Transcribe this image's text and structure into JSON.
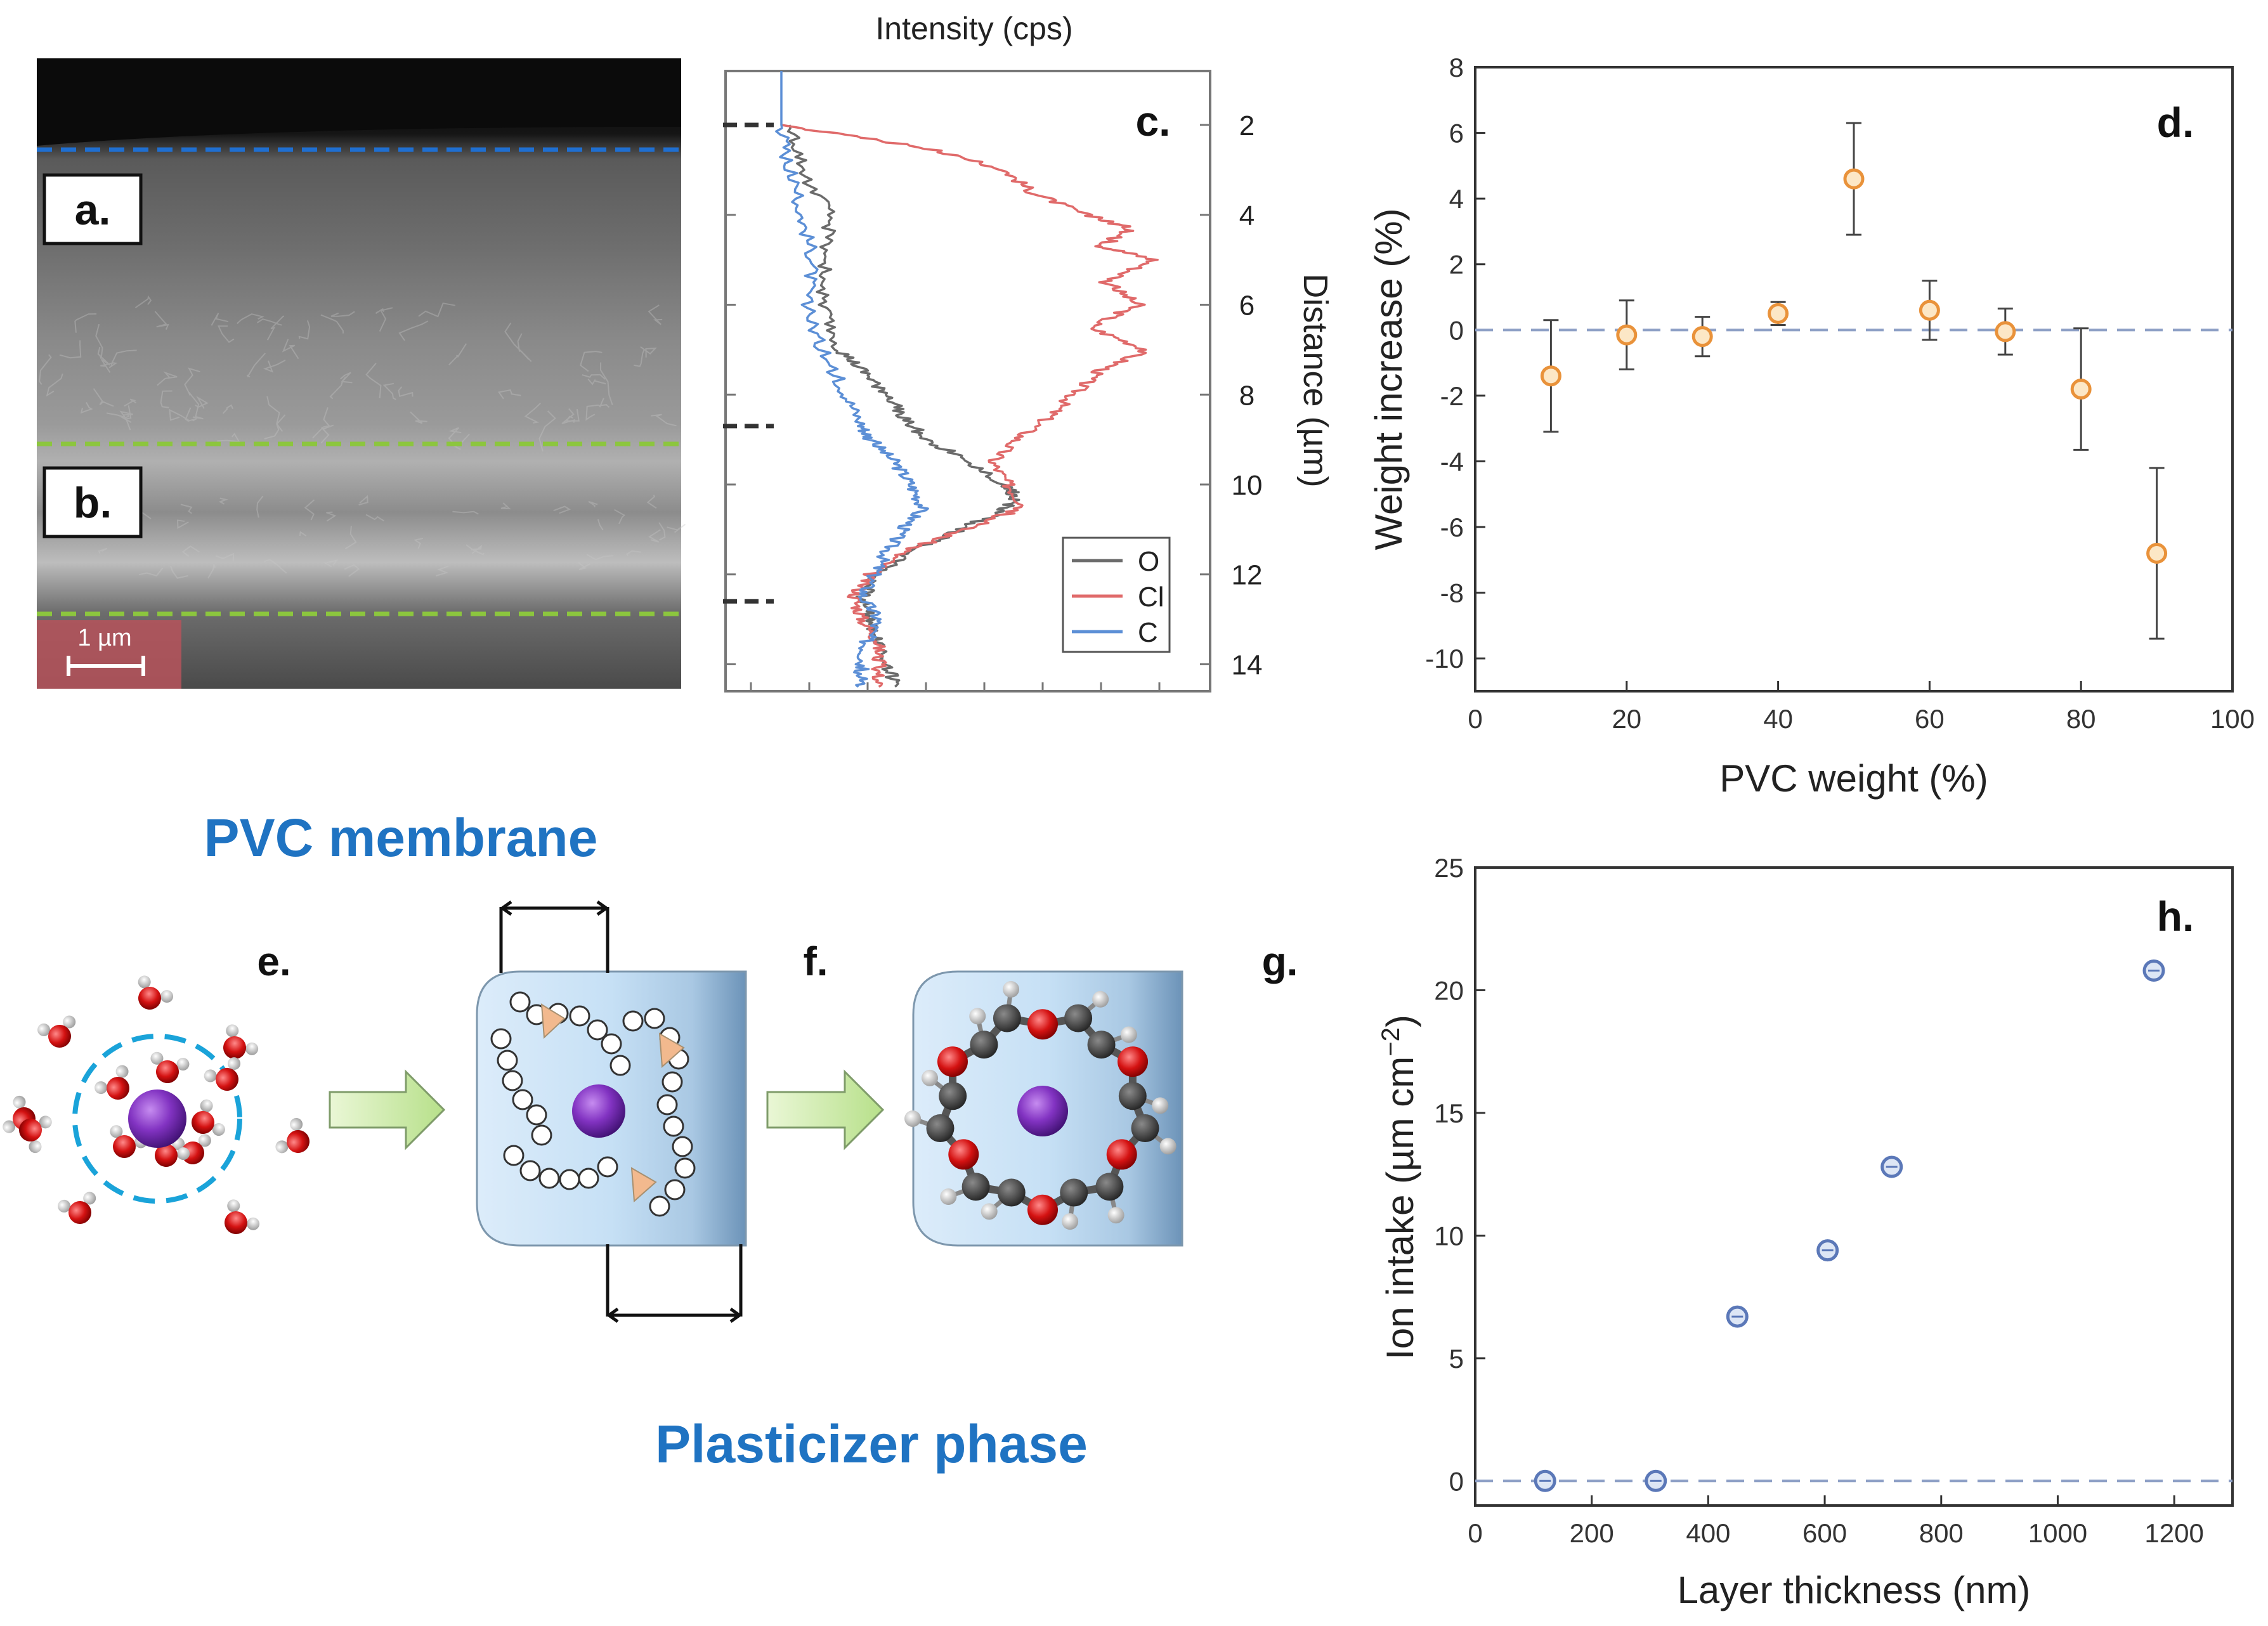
{
  "panel_labels": {
    "a": "a.",
    "b": "b.",
    "c": "c.",
    "d": "d.",
    "e": "e.",
    "f": "f.",
    "g": "g.",
    "h": "h."
  },
  "scale_bar": {
    "label": "1 µm"
  },
  "schematic": {
    "pvc_title": "PVC membrane",
    "plasticizer_title": "Plasticizer phase"
  },
  "colors": {
    "pvc_blue": "#1f73c2",
    "marker_orange": "#e9923a",
    "marker_blue": "#5b78b8",
    "zero_line": "#8ea0c6",
    "eds_O": "#6b6b6b",
    "eds_Cl": "#e06a6a",
    "eds_C": "#5c8fd6"
  },
  "chart_data": [
    {
      "id": "c",
      "type": "line",
      "title": "Intensity (cps)",
      "ylabel": "Distance (µm)",
      "ylim": [
        0.8,
        14.6
      ],
      "yticks": [
        2,
        4,
        6,
        8,
        10,
        12,
        14
      ],
      "interfaces": [
        2,
        8.7,
        12.6
      ],
      "legend_location": "bottom-right",
      "series": [
        {
          "name": "O",
          "color": "#6b6b6b",
          "y": [
            2.0,
            3.0,
            4.0,
            5.0,
            6.0,
            7.0,
            7.5,
            8.0,
            8.5,
            9.0,
            9.5,
            10.0,
            10.3,
            10.6,
            11.0,
            11.5,
            12.0,
            12.5,
            13.0,
            13.5,
            14.0,
            14.5
          ],
          "x": [
            0.02,
            0.05,
            0.12,
            0.11,
            0.1,
            0.14,
            0.2,
            0.26,
            0.3,
            0.36,
            0.46,
            0.55,
            0.58,
            0.54,
            0.44,
            0.32,
            0.24,
            0.2,
            0.22,
            0.24,
            0.26,
            0.28
          ]
        },
        {
          "name": "Cl",
          "color": "#e06a6a",
          "y": [
            2.0,
            2.5,
            3.0,
            3.5,
            4.0,
            4.3,
            4.7,
            5.0,
            5.5,
            6.0,
            6.5,
            7.0,
            7.5,
            8.0,
            8.5,
            9.0,
            9.5,
            10.0,
            10.5,
            11.0,
            11.5,
            12.0,
            12.5,
            13.0,
            13.5,
            14.0,
            14.5
          ],
          "x": [
            0.0,
            0.35,
            0.55,
            0.62,
            0.75,
            0.86,
            0.79,
            0.92,
            0.8,
            0.88,
            0.76,
            0.9,
            0.78,
            0.72,
            0.66,
            0.58,
            0.52,
            0.56,
            0.6,
            0.45,
            0.3,
            0.22,
            0.18,
            0.2,
            0.24,
            0.24,
            0.24
          ]
        },
        {
          "name": "C",
          "color": "#5c8fd6",
          "y": [
            0.8,
            1.6,
            2.0,
            3.0,
            4.0,
            5.0,
            6.0,
            7.0,
            8.0,
            8.7,
            9.0,
            9.5,
            10.0,
            10.5,
            11.0,
            11.5,
            12.0,
            12.5,
            13.0,
            13.5,
            14.0,
            14.5
          ],
          "x": [
            0.0,
            0.0,
            0.0,
            0.02,
            0.05,
            0.08,
            0.06,
            0.1,
            0.16,
            0.2,
            0.22,
            0.28,
            0.32,
            0.35,
            0.3,
            0.26,
            0.23,
            0.2,
            0.24,
            0.21,
            0.2,
            0.19
          ]
        }
      ]
    },
    {
      "id": "d",
      "type": "scatter",
      "xlabel": "PVC weight (%)",
      "ylabel": "Weight increase (%)",
      "xlim": [
        0,
        100
      ],
      "ylim": [
        -11,
        8
      ],
      "xticks": [
        0,
        20,
        40,
        60,
        80,
        100
      ],
      "yticks": [
        -10,
        -8,
        -6,
        -4,
        -2,
        0,
        2,
        4,
        6,
        8
      ],
      "reference_line": 0,
      "x": [
        10,
        20,
        30,
        40,
        50,
        60,
        70,
        80,
        90
      ],
      "y": [
        -1.4,
        -0.15,
        -0.2,
        0.5,
        4.6,
        0.6,
        -0.05,
        -1.8,
        -6.8
      ],
      "err": [
        1.7,
        1.05,
        0.6,
        0.35,
        1.7,
        0.9,
        0.7,
        1.85,
        2.6
      ]
    },
    {
      "id": "h",
      "type": "scatter",
      "xlabel": "Layer thickness (nm)",
      "ylabel": "Ion intake (µm cm⁻²)",
      "ylabel_parts": {
        "base": "Ion intake (µm cm",
        "sup": "−2",
        "end": ")"
      },
      "xlim": [
        0,
        1300
      ],
      "ylim": [
        -1,
        25
      ],
      "xticks": [
        0,
        200,
        400,
        600,
        800,
        1000,
        1200
      ],
      "yticks": [
        0,
        5,
        10,
        15,
        20,
        25
      ],
      "reference_line": 0,
      "x": [
        120,
        310,
        450,
        605,
        715,
        1165
      ],
      "y": [
        0,
        0,
        6.7,
        9.4,
        12.8,
        20.8
      ]
    }
  ]
}
